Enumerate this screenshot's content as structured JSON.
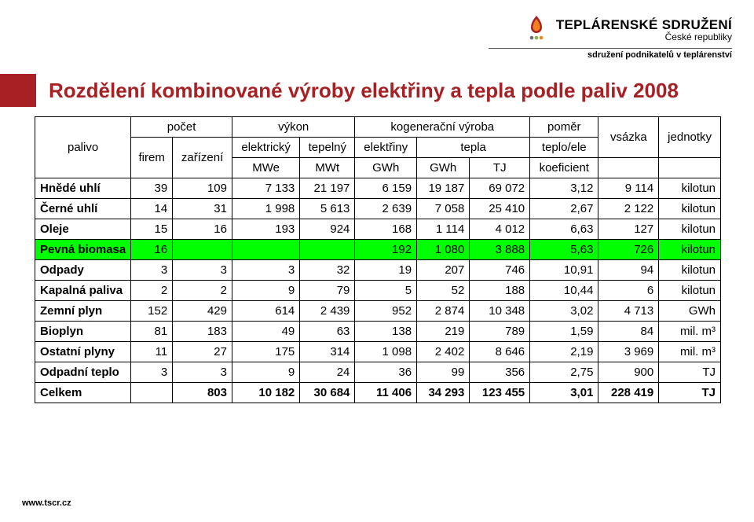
{
  "logo": {
    "line1": "TEPLÁRENSKÉ SDRUŽENÍ",
    "line2": "České republiky",
    "subhead": "sdružení podnikatelů v teplárenství",
    "icon_colors": {
      "red": "#a72024",
      "orange": "#f58220",
      "green": "#7bb742",
      "gray": "#6e6e6e"
    }
  },
  "title": "Rozdělení kombinované výroby elektřiny a tepla podle paliv 2008",
  "footer": "www.tscr.cz",
  "colors": {
    "title_swatch": "#a72024",
    "title_text": "#a72024",
    "highlight_row": "#00ff00",
    "border": "#000000",
    "background": "#ffffff"
  },
  "table": {
    "header": {
      "palivo": "palivo",
      "pocet": "počet",
      "vykon": "výkon",
      "kogen": "kogenerační výroba",
      "pomer": "poměr",
      "vsazka": "vsázka",
      "jednotky": "jednotky",
      "elektricky": "elektrický",
      "tepelny": "tepelný",
      "elektriny": "elektřiny",
      "tepla": "tepla",
      "teplo_ele": "teplo/ele",
      "firem": "firem",
      "zarizeni": "zařízení",
      "mwe": "MWe",
      "mwt": "MWt",
      "gwh1": "GWh",
      "gwh2": "GWh",
      "tj": "TJ",
      "koef": "koeficient"
    },
    "rows": [
      {
        "label": "Hnědé uhlí",
        "v": [
          "39",
          "109",
          "7 133",
          "21 197",
          "6 159",
          "19 187",
          "69 072",
          "3,12",
          "9 114",
          "kilotun"
        ]
      },
      {
        "label": "Černé uhlí",
        "v": [
          "14",
          "31",
          "1 998",
          "5 613",
          "2 639",
          "7 058",
          "25 410",
          "2,67",
          "2 122",
          "kilotun"
        ]
      },
      {
        "label": "Oleje",
        "v": [
          "15",
          "16",
          "193",
          "924",
          "168",
          "1 114",
          "4 012",
          "6,63",
          "127",
          "kilotun"
        ]
      },
      {
        "label": "Pevná biomasa",
        "v": [
          "16",
          "",
          "",
          "",
          "192",
          "1 080",
          "3 888",
          "5,63",
          "726",
          "kilotun"
        ],
        "highlight": true
      },
      {
        "label": "Odpady",
        "v": [
          "3",
          "3",
          "3",
          "32",
          "19",
          "207",
          "746",
          "10,91",
          "94",
          "kilotun"
        ]
      },
      {
        "label": "Kapalná paliva",
        "v": [
          "2",
          "2",
          "9",
          "79",
          "5",
          "52",
          "188",
          "10,44",
          "6",
          "kilotun"
        ]
      },
      {
        "label": "Zemní plyn",
        "v": [
          "152",
          "429",
          "614",
          "2 439",
          "952",
          "2 874",
          "10 348",
          "3,02",
          "4 713",
          "GWh"
        ]
      },
      {
        "label": "Bioplyn",
        "v": [
          "81",
          "183",
          "49",
          "63",
          "138",
          "219",
          "789",
          "1,59",
          "84",
          "mil. m³"
        ]
      },
      {
        "label": "Ostatní plyny",
        "v": [
          "11",
          "27",
          "175",
          "314",
          "1 098",
          "2 402",
          "8 646",
          "2,19",
          "3 969",
          "mil. m³"
        ]
      },
      {
        "label": "Odpadní teplo",
        "v": [
          "3",
          "3",
          "9",
          "24",
          "36",
          "99",
          "356",
          "2,75",
          "900",
          "TJ"
        ]
      },
      {
        "label": "Celkem",
        "v": [
          "",
          "803",
          "10 182",
          "30 684",
          "11 406",
          "34 293",
          "123 455",
          "3,01",
          "228 419",
          "TJ"
        ],
        "sum": true
      }
    ],
    "font_size": 15,
    "row_label_weight": 700
  }
}
